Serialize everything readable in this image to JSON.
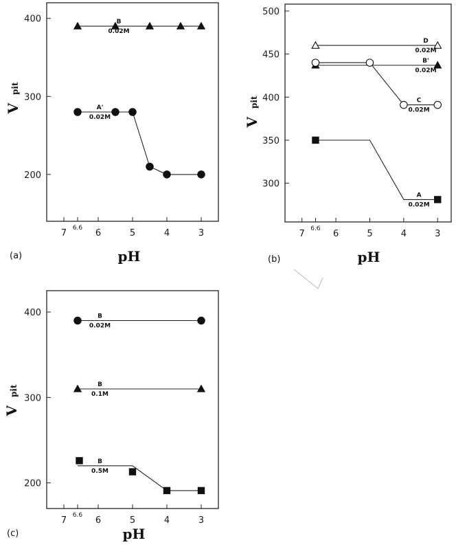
{
  "chart_data": [
    {
      "type": "line",
      "panel_label": "(a)",
      "xlabel": "pH",
      "ylabel": "V",
      "ylabel_sub": "pit",
      "x_ticks": [
        "7",
        "6.6",
        "6",
        "5",
        "4",
        "3"
      ],
      "y_ticks": [
        "200",
        "300",
        "400"
      ],
      "xlim": [
        7.5,
        2.5
      ],
      "ylim": [
        140,
        420
      ],
      "series": [
        {
          "name": "B",
          "concentration": "0.02M",
          "marker": "filled-triangle",
          "points": [
            [
              6.6,
              390
            ],
            [
              5.5,
              390
            ],
            [
              4.5,
              390
            ],
            [
              3.6,
              390
            ],
            [
              3,
              390
            ]
          ],
          "line": [
            [
              6.6,
              390
            ],
            [
              3,
              390
            ]
          ],
          "label_at": [
            5.4,
            390
          ]
        },
        {
          "name": "A'",
          "concentration": "0.02M",
          "marker": "filled-circle",
          "points": [
            [
              6.6,
              280
            ],
            [
              5.5,
              280
            ],
            [
              5,
              280
            ],
            [
              4.5,
              210
            ],
            [
              4,
              200
            ],
            [
              3,
              200
            ]
          ],
          "line": [
            [
              6.6,
              280
            ],
            [
              5,
              280
            ],
            [
              4.5,
              210
            ],
            [
              4,
              200
            ],
            [
              3,
              200
            ]
          ],
          "label_at": [
            5.95,
            280
          ]
        }
      ]
    },
    {
      "type": "line",
      "panel_label": "(b)",
      "xlabel": "pH",
      "ylabel": "V",
      "ylabel_sub": "pit",
      "x_ticks": [
        "7",
        "6.6",
        "6",
        "5",
        "4",
        "3"
      ],
      "y_ticks": [
        "300",
        "350",
        "400",
        "450",
        "500"
      ],
      "xlim": [
        7.5,
        2.6
      ],
      "ylim": [
        255,
        508
      ],
      "series": [
        {
          "name": "D",
          "concentration": "0.02M",
          "marker": "open-triangle",
          "points": [
            [
              6.6,
              460
            ],
            [
              3,
              460
            ]
          ],
          "line": [
            [
              6.6,
              460
            ],
            [
              3,
              460
            ]
          ],
          "label_at": [
            3.35,
            460
          ]
        },
        {
          "name": "B'",
          "concentration": "0.02M",
          "marker": "filled-triangle",
          "points": [
            [
              6.6,
              437
            ],
            [
              3,
              437
            ]
          ],
          "line": [
            [
              6.6,
              437
            ],
            [
              3,
              437
            ]
          ],
          "label_at": [
            3.35,
            437
          ]
        },
        {
          "name": "C",
          "concentration": "0.02M",
          "marker": "open-circle",
          "points": [
            [
              6.6,
              440
            ],
            [
              5,
              440
            ],
            [
              4,
              391
            ],
            [
              3,
              391
            ]
          ],
          "line": [
            [
              6.6,
              440
            ],
            [
              5,
              440
            ],
            [
              4,
              391
            ],
            [
              3,
              391
            ]
          ],
          "label_at": [
            3.55,
            391
          ]
        },
        {
          "name": "A",
          "concentration": "0.02M",
          "marker": "filled-square",
          "points": [
            [
              6.6,
              350
            ],
            [
              3,
              281
            ]
          ],
          "line": [
            [
              6.6,
              350
            ],
            [
              5,
              350
            ],
            [
              4,
              281
            ],
            [
              3,
              281
            ]
          ],
          "label_at": [
            3.55,
            281
          ]
        }
      ]
    },
    {
      "type": "line",
      "panel_label": "(c)",
      "xlabel": "pH",
      "ylabel": "V",
      "ylabel_sub": "pit",
      "x_ticks": [
        "7",
        "6.6",
        "6",
        "5",
        "4",
        "3"
      ],
      "y_ticks": [
        "200",
        "300",
        "400"
      ],
      "xlim": [
        7.5,
        2.5
      ],
      "ylim": [
        170,
        425
      ],
      "series": [
        {
          "name": "B",
          "concentration": "0.02M",
          "marker": "filled-circle",
          "points": [
            [
              6.6,
              390
            ],
            [
              3,
              390
            ]
          ],
          "line": [
            [
              6.6,
              390
            ],
            [
              3,
              390
            ]
          ],
          "label_at": [
            5.95,
            390
          ]
        },
        {
          "name": "B",
          "concentration": "0.1M",
          "marker": "filled-triangle",
          "points": [
            [
              6.6,
              310
            ],
            [
              3,
              310
            ]
          ],
          "line": [
            [
              6.6,
              310
            ],
            [
              3,
              310
            ]
          ],
          "label_at": [
            5.95,
            310
          ]
        },
        {
          "name": "B",
          "concentration": "0.5M",
          "marker": "filled-square",
          "points": [
            [
              6.55,
              226
            ],
            [
              5,
              213
            ],
            [
              4,
              191
            ],
            [
              3,
              191
            ]
          ],
          "line": [
            [
              6.6,
              220
            ],
            [
              5,
              220
            ],
            [
              4,
              191
            ],
            [
              3,
              191
            ]
          ],
          "label_at": [
            5.95,
            220
          ]
        }
      ]
    }
  ]
}
